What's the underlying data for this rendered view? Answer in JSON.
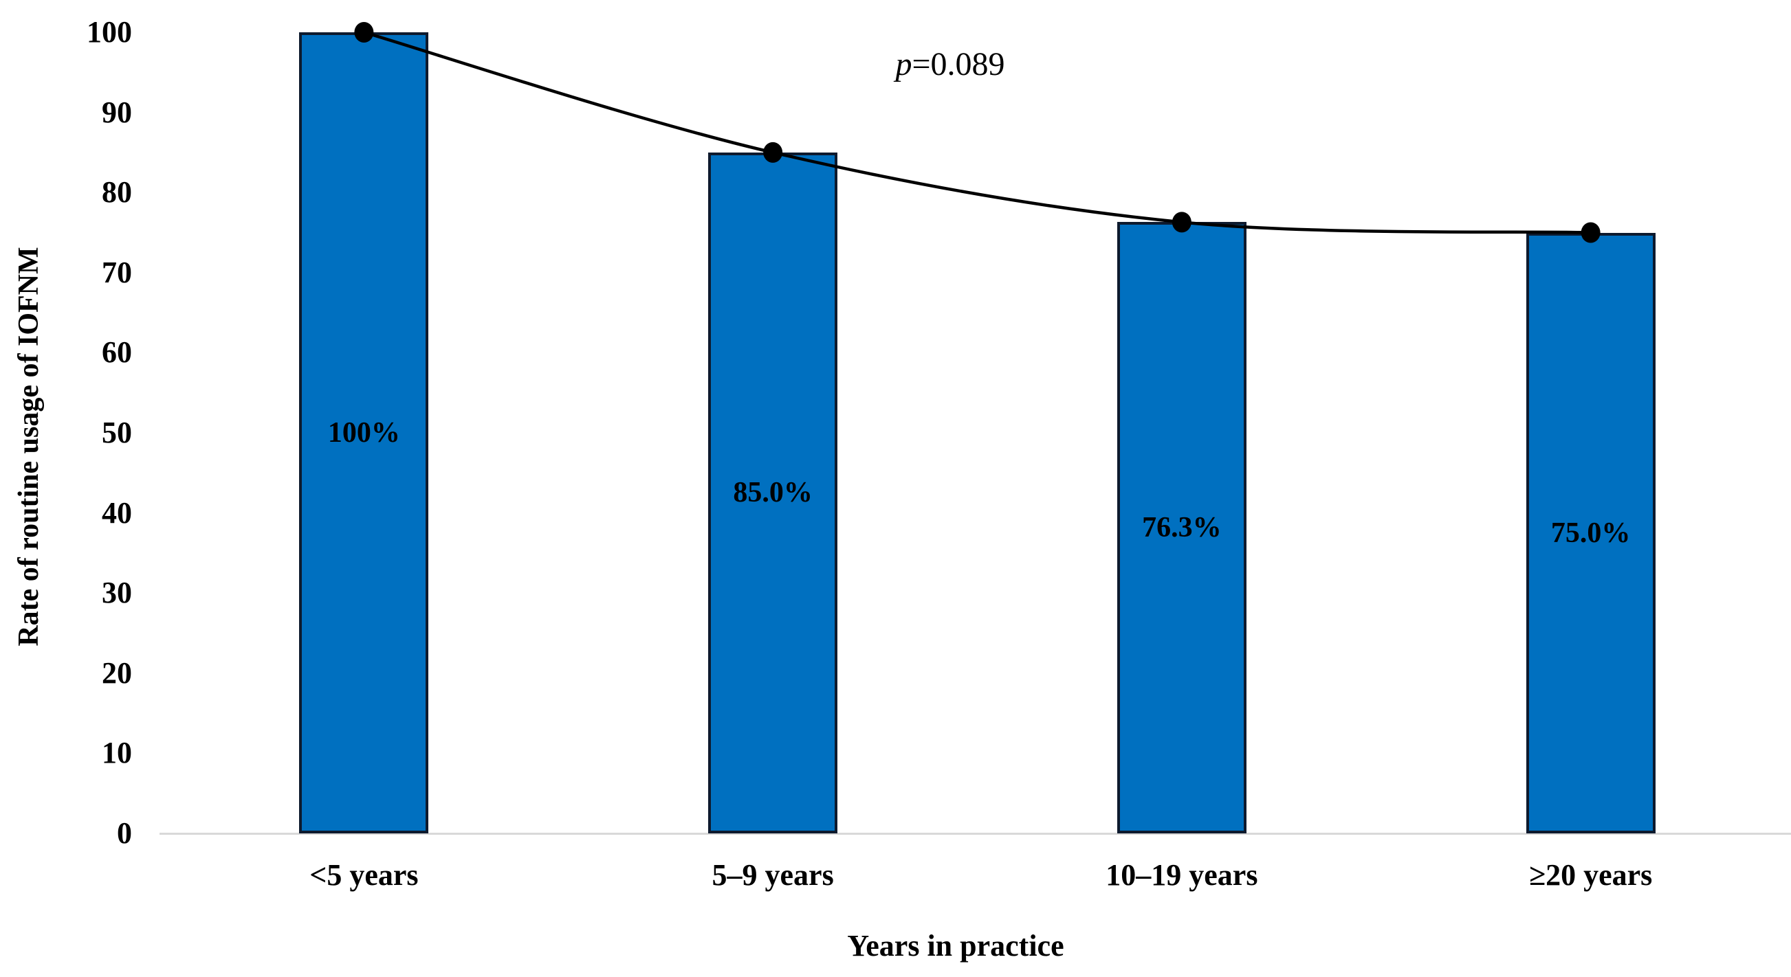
{
  "chart_data": {
    "type": "bar",
    "categories": [
      "<5 years",
      "5–9 years",
      "10–19 years",
      "≥20 years"
    ],
    "values": [
      100,
      85.0,
      76.3,
      75.0
    ],
    "bar_labels": [
      "100%",
      "85.0%",
      "76.3%",
      "75.0%"
    ],
    "line_overlay": {
      "type": "line",
      "values": [
        100,
        85.0,
        76.3,
        75.0
      ],
      "smoothed": true,
      "marker": "filled-circle-black"
    },
    "title": "",
    "xlabel": "Years in practice",
    "ylabel": "Rate of routine usage of IOFNM",
    "ylim": [
      0,
      100
    ],
    "ytick_step": 10,
    "yticks": [
      "0",
      "10",
      "20",
      "30",
      "40",
      "50",
      "60",
      "70",
      "80",
      "90",
      "100"
    ],
    "annotation": {
      "symbol": "p",
      "text": "=0.089"
    },
    "legend": "none",
    "grid": "off",
    "colors": {
      "bar_fill": "#0070C0",
      "bar_border": "#0d1a2e",
      "line": "#000000",
      "marker": "#000000",
      "axis_line": "#d9d9d9",
      "text": "#000000"
    }
  }
}
